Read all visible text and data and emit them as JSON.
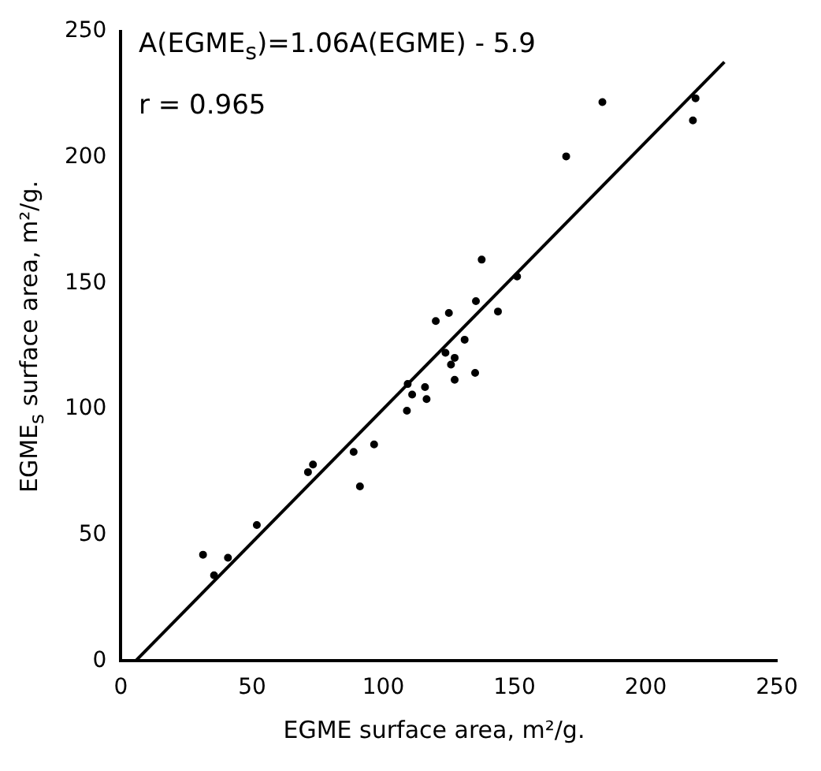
{
  "chart_data": {
    "type": "scatter",
    "xlabel": "EGME surface area, m²/g.",
    "ylabel": "EGME$_{s}$ surface area, m²/g.",
    "annotations": [
      "A(EGME$_{s}$)=1.06A(EGME) - 5.9",
      "r = 0.965"
    ],
    "xlim": [
      0,
      250
    ],
    "ylim": [
      0,
      250
    ],
    "xticks": [
      0,
      50,
      100,
      150,
      200,
      250
    ],
    "yticks": [
      0,
      50,
      100,
      150,
      200,
      250
    ],
    "grid": false,
    "legend": false,
    "series": [
      {
        "type": "scatter",
        "marker": "circle",
        "color": "#000000",
        "x": [
          31.3,
          35.5,
          40.8,
          51.8,
          71.3,
          73.2,
          88.7,
          96.5,
          91.1,
          109.3,
          111,
          115.9,
          116.5,
          109,
          125.8,
          127.2,
          135,
          183.5,
          169.7,
          218,
          219,
          137.5,
          151,
          135.3,
          120,
          125,
          143.7,
          131,
          123.7,
          127.2
        ],
        "values": [
          42.2,
          34,
          41,
          54,
          75,
          78,
          83,
          86,
          69.3,
          110,
          105.8,
          108.8,
          104,
          99.4,
          117.7,
          111.7,
          114.4,
          222,
          200.4,
          214.7,
          223.5,
          159.4,
          152.7,
          142.9,
          135,
          138.2,
          138.8,
          127.6,
          122.4,
          120.4
        ]
      },
      {
        "type": "line",
        "color": "#000000",
        "x": [
          5.6,
          230
        ],
        "values": [
          0,
          237.9
        ]
      }
    ]
  }
}
